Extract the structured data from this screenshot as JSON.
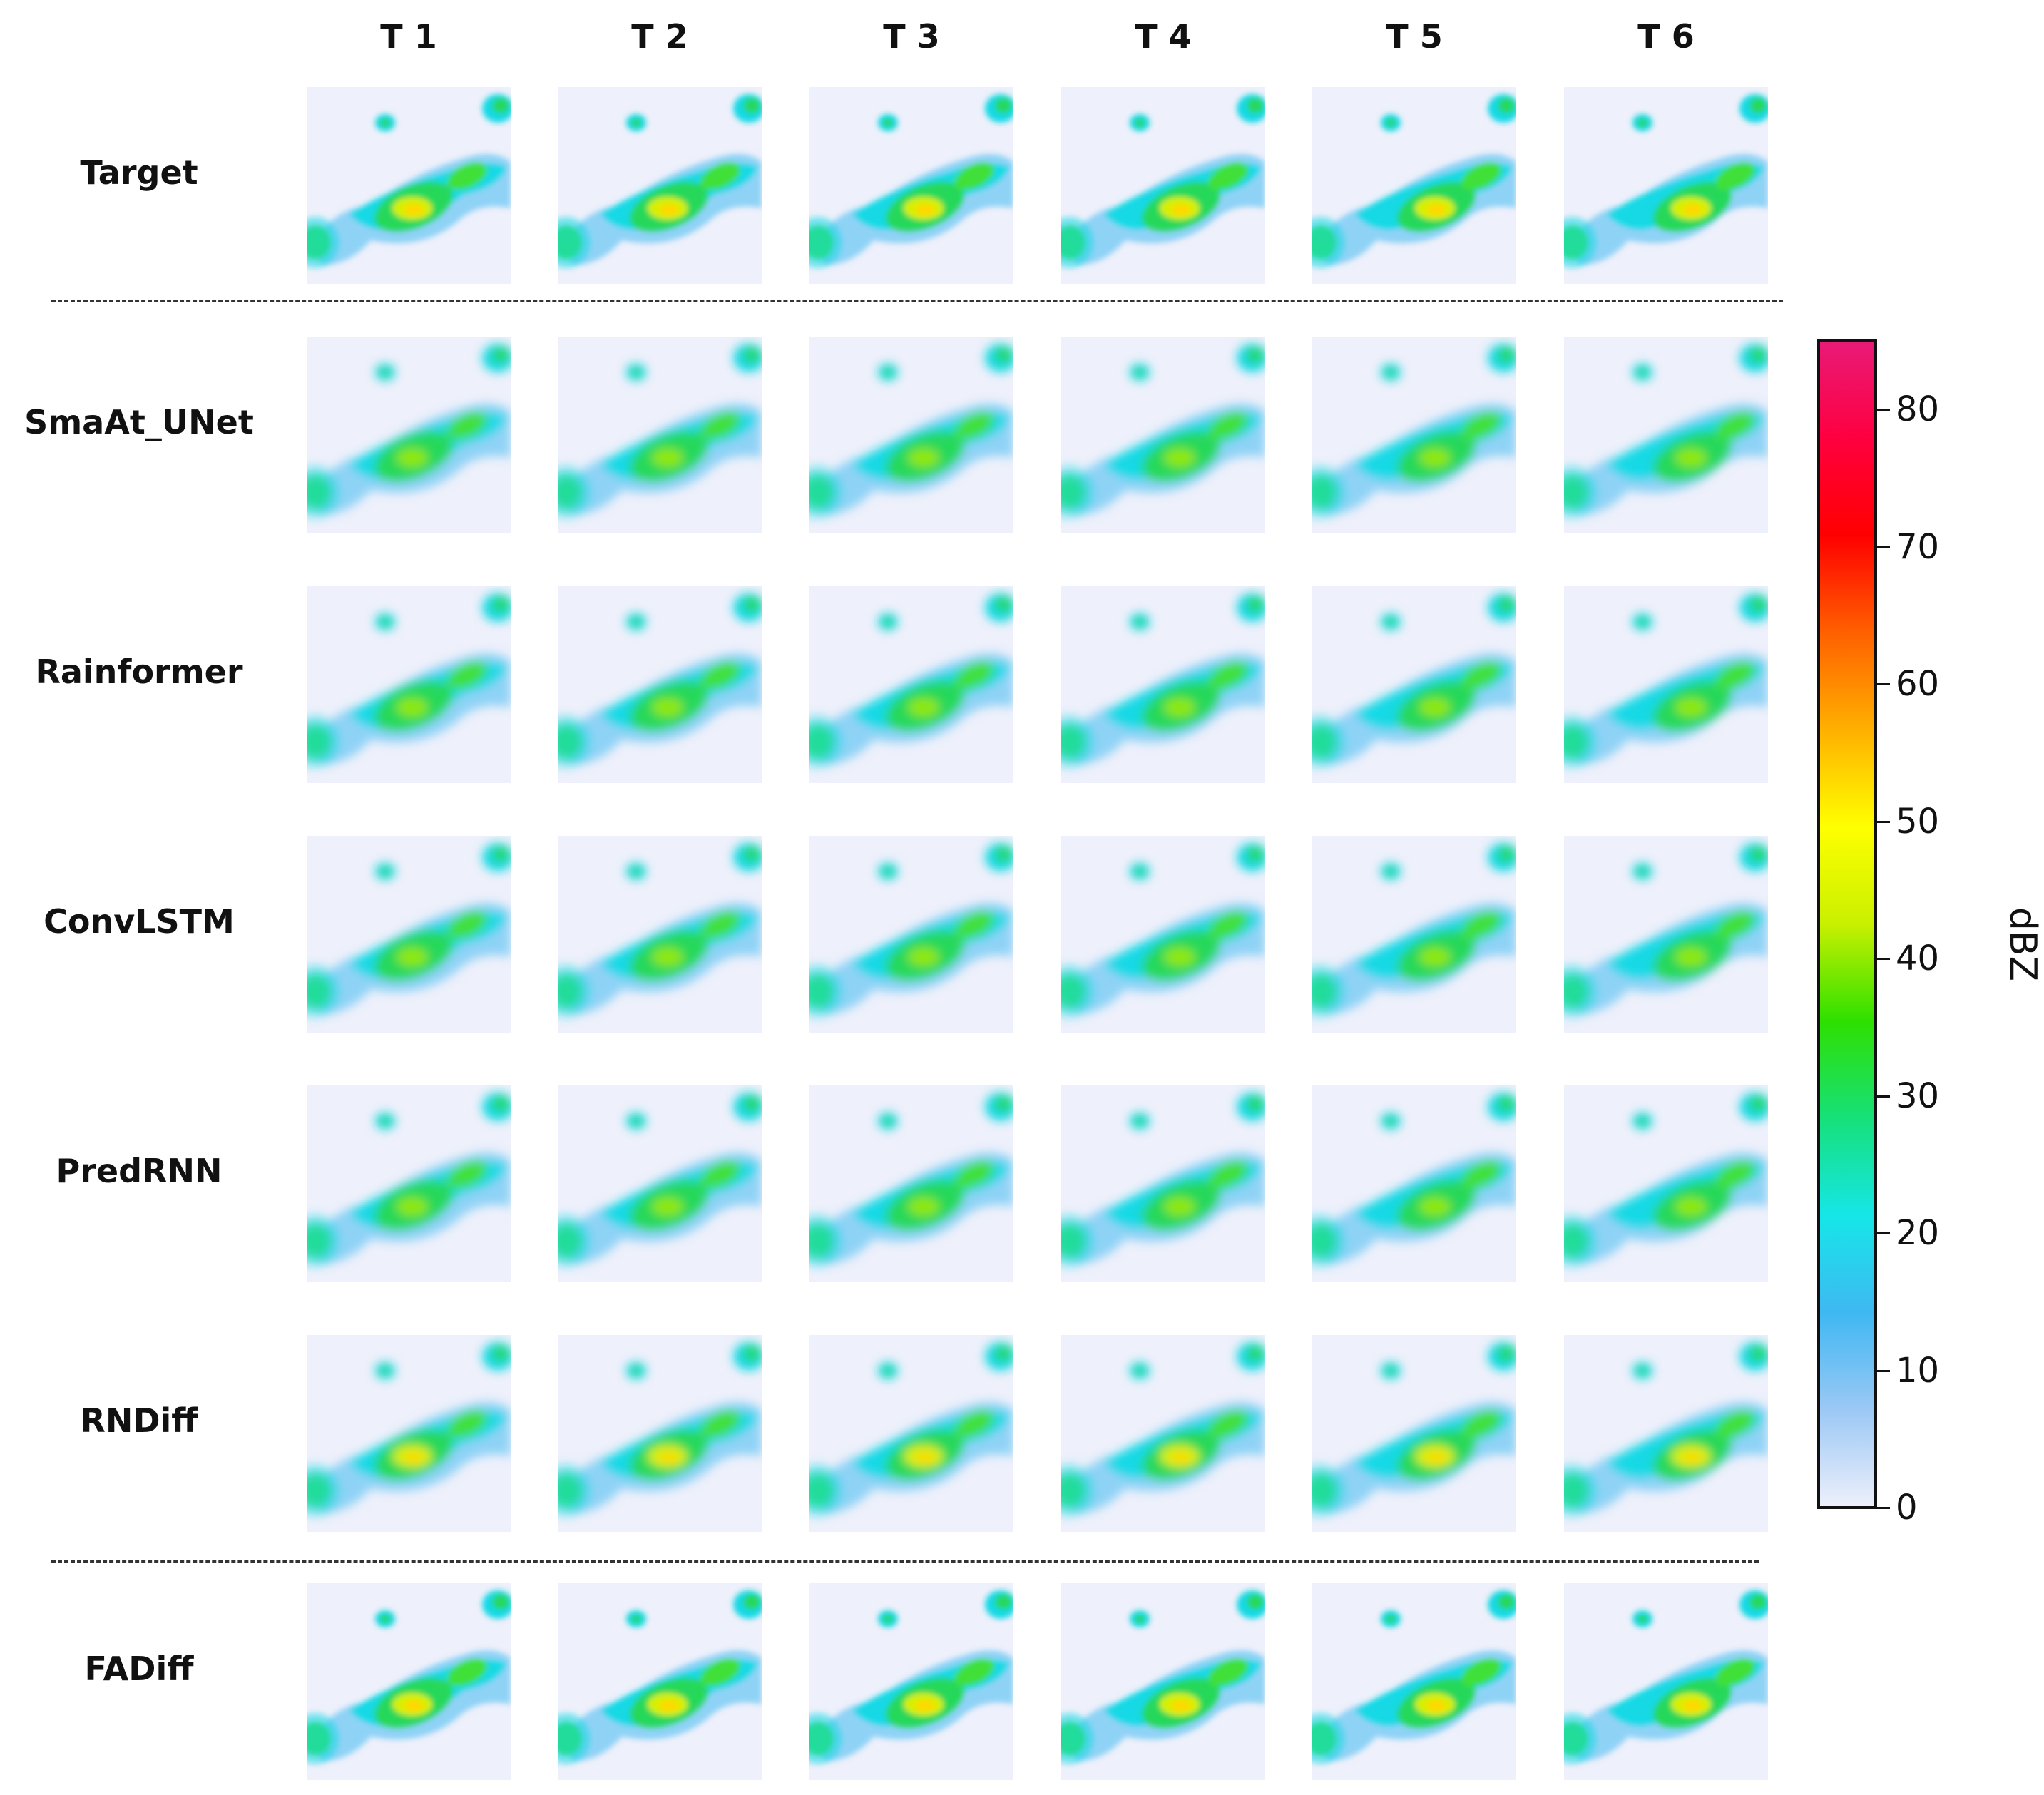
{
  "columns": [
    "T 1",
    "T 2",
    "T 3",
    "T 4",
    "T 5",
    "T 6"
  ],
  "rows": [
    "Target",
    "SmaAt_UNet",
    "Rainformer",
    "ConvLSTM",
    "PredRNN",
    "RNDiff",
    "FADiff"
  ],
  "colorbar": {
    "unit": "dBZ",
    "ticks": [
      "0",
      "10",
      "20",
      "30",
      "40",
      "50",
      "60",
      "70",
      "80"
    ],
    "range": [
      0,
      85
    ],
    "colormap": [
      "#eef0fb",
      "#9cc8f5",
      "#3fb8f2",
      "#16e6e8",
      "#16e07a",
      "#2ee000",
      "#c8f000",
      "#ffff00",
      "#ffb000",
      "#ff6000",
      "#ff0000",
      "#ff0040",
      "#e81a78"
    ]
  }
}
